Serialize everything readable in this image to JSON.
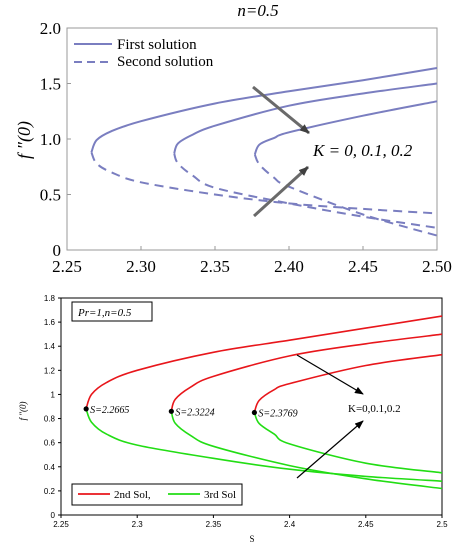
{
  "chart_data": [
    {
      "type": "line",
      "title": "n=0.5",
      "xlabel": "",
      "ylabel": "f ″(0)",
      "xlim": [
        2.25,
        2.5
      ],
      "ylim": [
        0,
        2.0
      ],
      "x_ticks": [
        "2.25",
        "2.30",
        "2.35",
        "2.40",
        "2.45",
        "2.50"
      ],
      "y_ticks": [
        "0",
        "0.5",
        "1.0",
        "1.5",
        "2.0"
      ],
      "grid": false,
      "legend_position": "top-left",
      "legend": [
        "First solution",
        "Second solution"
      ],
      "annotation": "K = 0, 0.1, 0.2",
      "line_color": "#7a7ec0",
      "series": [
        {
          "name": "First solution",
          "K": 0,
          "x": [
            2.2665,
            2.27,
            2.28,
            2.3,
            2.35,
            2.4,
            2.45,
            2.5
          ],
          "y": [
            0.88,
            0.99,
            1.07,
            1.16,
            1.32,
            1.43,
            1.53,
            1.64
          ]
        },
        {
          "name": "First solution",
          "K": 0.1,
          "x": [
            2.3224,
            2.325,
            2.335,
            2.35,
            2.4,
            2.45,
            2.5
          ],
          "y": [
            0.87,
            0.96,
            1.04,
            1.12,
            1.3,
            1.41,
            1.5
          ]
        },
        {
          "name": "First solution",
          "K": 0.2,
          "x": [
            2.3769,
            2.38,
            2.39,
            2.4,
            2.45,
            2.5
          ],
          "y": [
            0.86,
            0.95,
            1.01,
            1.06,
            1.21,
            1.34
          ]
        },
        {
          "name": "Second solution",
          "K": 0,
          "x": [
            2.2665,
            2.27,
            2.28,
            2.3,
            2.35,
            2.4,
            2.45,
            2.5
          ],
          "y": [
            0.88,
            0.78,
            0.7,
            0.61,
            0.5,
            0.42,
            0.37,
            0.33
          ]
        },
        {
          "name": "Second solution",
          "K": 0.1,
          "x": [
            2.3224,
            2.325,
            2.335,
            2.35,
            2.4,
            2.45,
            2.5
          ],
          "y": [
            0.87,
            0.78,
            0.67,
            0.56,
            0.42,
            0.3,
            0.2
          ]
        },
        {
          "name": "Second solution",
          "K": 0.2,
          "x": [
            2.3769,
            2.38,
            2.39,
            2.4,
            2.45,
            2.5
          ],
          "y": [
            0.86,
            0.77,
            0.65,
            0.57,
            0.32,
            0.13
          ]
        }
      ]
    },
    {
      "type": "line",
      "title": "",
      "xlabel": "S",
      "ylabel": "f ″(0)",
      "xlim": [
        2.25,
        2.5
      ],
      "ylim": [
        0,
        1.8
      ],
      "x_ticks": [
        "2.25",
        "2.3",
        "2.35",
        "2.4",
        "2.45",
        "2.5"
      ],
      "y_ticks": [
        "0",
        "0.2",
        "0.4",
        "0.6",
        "0.8",
        "1",
        "1.2",
        "1.4",
        "1.6",
        "1.8"
      ],
      "grid": false,
      "legend_position": "bottom-left",
      "parameter_box": "Pr=1,n=0.5",
      "annotation": "K=0,0.1,0.2",
      "legend": [
        "2nd Sol,",
        "3rd Sol"
      ],
      "point_labels": [
        "S=2.2665",
        "S=2.3224",
        "S=2.3769"
      ],
      "colors": {
        "second": "#e8161b",
        "third": "#22dd14"
      },
      "series": [
        {
          "name": "2nd Sol",
          "K": 0,
          "x": [
            2.2665,
            2.27,
            2.28,
            2.3,
            2.35,
            2.4,
            2.45,
            2.5
          ],
          "y": [
            0.88,
            1.0,
            1.1,
            1.2,
            1.35,
            1.45,
            1.55,
            1.65
          ]
        },
        {
          "name": "2nd Sol",
          "K": 0.1,
          "x": [
            2.3224,
            2.325,
            2.335,
            2.35,
            2.4,
            2.45,
            2.5
          ],
          "y": [
            0.86,
            0.96,
            1.06,
            1.15,
            1.32,
            1.42,
            1.5
          ]
        },
        {
          "name": "2nd Sol",
          "K": 0.2,
          "x": [
            2.3769,
            2.38,
            2.39,
            2.4,
            2.45,
            2.5
          ],
          "y": [
            0.85,
            0.95,
            1.04,
            1.09,
            1.24,
            1.33
          ]
        },
        {
          "name": "3rd Sol",
          "K": 0,
          "x": [
            2.2665,
            2.27,
            2.28,
            2.3,
            2.35,
            2.4,
            2.45,
            2.5
          ],
          "y": [
            0.88,
            0.77,
            0.67,
            0.58,
            0.47,
            0.38,
            0.32,
            0.28
          ]
        },
        {
          "name": "3rd Sol",
          "K": 0.1,
          "x": [
            2.3224,
            2.325,
            2.335,
            2.35,
            2.4,
            2.45,
            2.5
          ],
          "y": [
            0.86,
            0.76,
            0.66,
            0.57,
            0.41,
            0.3,
            0.22
          ]
        },
        {
          "name": "3rd Sol",
          "K": 0.2,
          "x": [
            2.3769,
            2.38,
            2.39,
            2.4,
            2.45,
            2.5
          ],
          "y": [
            0.85,
            0.76,
            0.67,
            0.59,
            0.43,
            0.35
          ]
        }
      ]
    }
  ]
}
